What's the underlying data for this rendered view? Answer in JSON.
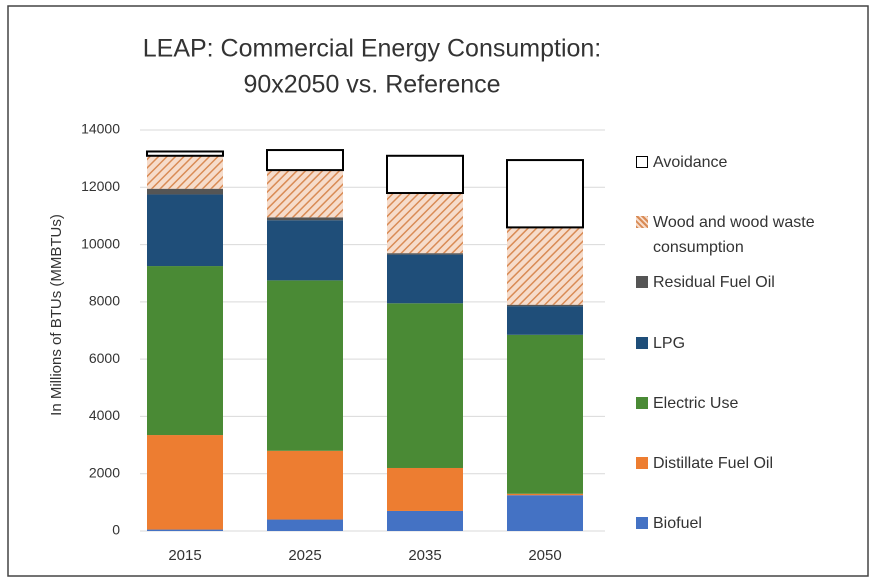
{
  "chart_data": {
    "type": "stacked_bar",
    "title": [
      "LEAP: Commercial Energy Consumption:",
      "90x2050 vs. Reference"
    ],
    "y_axis_label": "In Millions of BTUs (MMBTUs)",
    "categories": [
      "2015",
      "2025",
      "2035",
      "2050"
    ],
    "series": [
      {
        "name": "Biofuel",
        "color": "#4472c4",
        "values": [
          50,
          400,
          700,
          1250
        ]
      },
      {
        "name": "Distillate Fuel Oil",
        "color": "#ed7d31",
        "values": [
          3300,
          2400,
          1500,
          50
        ]
      },
      {
        "name": "Electric Use",
        "color": "#4a8a35",
        "values": [
          5900,
          5950,
          5750,
          5550
        ]
      },
      {
        "name": "LPG",
        "color": "#1f4e79",
        "values": [
          2500,
          2100,
          1700,
          1000
        ]
      },
      {
        "name": "Residual Fuel Oil",
        "color": "#555555",
        "values": [
          200,
          100,
          50,
          50
        ]
      },
      {
        "name": "Wood and wood waste consumption",
        "color": "#e8a87c",
        "hatch": true,
        "values": [
          1150,
          1650,
          2100,
          2700
        ]
      },
      {
        "name": "Avoidance",
        "color": "#ffffff",
        "edgecolor": "#000000",
        "values": [
          150,
          700,
          1300,
          2350
        ]
      }
    ],
    "ylim": [
      0,
      14000
    ],
    "yticks": [
      0,
      2000,
      4000,
      6000,
      8000,
      10000,
      12000,
      14000
    ],
    "grid": true,
    "legend": "right"
  }
}
